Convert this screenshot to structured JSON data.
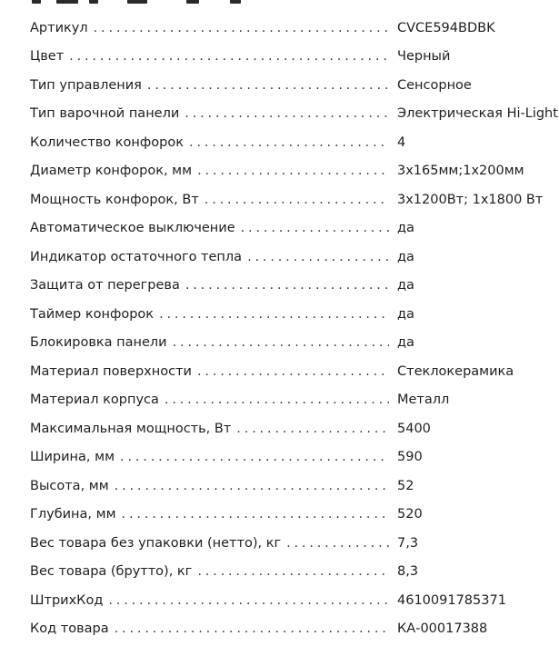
{
  "specs": [
    {
      "label": "Артикул",
      "value": "CVCE594BDBK"
    },
    {
      "label": "Цвет",
      "value": "Черный"
    },
    {
      "label": "Тип управления",
      "value": "Сенсорное"
    },
    {
      "label": "Тип варочной панели",
      "value": "Электрическая Hi-Light"
    },
    {
      "label": "Количество конфорок",
      "value": "4"
    },
    {
      "label": "Диаметр конфорок, мм",
      "value": "3х165мм;1х200мм"
    },
    {
      "label": "Мощность конфорок, Вт",
      "value": "3х1200Вт; 1х1800 Вт"
    },
    {
      "label": "Автоматическое выключение",
      "value": "да"
    },
    {
      "label": "Индикатор остаточного тепла",
      "value": "да"
    },
    {
      "label": "Защита от перегрева",
      "value": "да"
    },
    {
      "label": "Таймер конфорок",
      "value": "да"
    },
    {
      "label": "Блокировка панели",
      "value": "да"
    },
    {
      "label": "Материал поверхности",
      "value": "Стеклокерамика"
    },
    {
      "label": "Материал корпуса",
      "value": "Металл"
    },
    {
      "label": "Максимальная мощность, Вт",
      "value": "5400"
    },
    {
      "label": "Ширина, мм",
      "value": "590"
    },
    {
      "label": "Высота, мм",
      "value": "52"
    },
    {
      "label": "Глубина, мм",
      "value": "520"
    },
    {
      "label": "Вес товара без упаковки (нетто), кг",
      "value": "7,3"
    },
    {
      "label": "Вес товара (брутто), кг",
      "value": "8,3"
    },
    {
      "label": "ШтрихКод",
      "value": "4610091785371"
    },
    {
      "label": "Код товара",
      "value": "КА-00017388"
    }
  ]
}
